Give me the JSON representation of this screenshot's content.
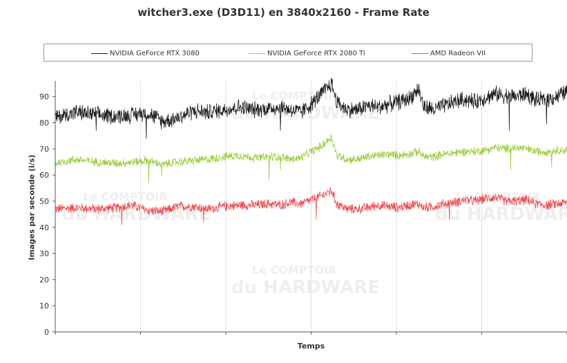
{
  "chart_data": {
    "type": "line",
    "title": "witcher3.exe (D3D11) en 3840x2160 - Frame Rate",
    "xlabel": "Temps",
    "ylabel": "Images par seconde (i/s)",
    "ylim": [
      0,
      96
    ],
    "yticks": [
      0,
      10,
      20,
      30,
      40,
      50,
      60,
      70,
      80,
      90
    ],
    "xlim": [
      0,
      1
    ],
    "x_ticks_count": 6,
    "grid": "vertical only",
    "legend_position": "top",
    "watermark": {
      "line1": "Le",
      "line2": "COMPTOIR",
      "line3": "du",
      "line4": "HARDWARE"
    },
    "series": [
      {
        "name": "NVIDIA GeForce RTX 3080",
        "color": "#1a1a1a",
        "noise": 3.0,
        "x": [
          0.0,
          0.04,
          0.08,
          0.12,
          0.15,
          0.18,
          0.21,
          0.24,
          0.27,
          0.3,
          0.33,
          0.36,
          0.39,
          0.42,
          0.44,
          0.46,
          0.48,
          0.5,
          0.52,
          0.54,
          0.55,
          0.57,
          0.59,
          0.61,
          0.63,
          0.65,
          0.67,
          0.69,
          0.71,
          0.72,
          0.74,
          0.76,
          0.78,
          0.8,
          0.82,
          0.84,
          0.86,
          0.88,
          0.9,
          0.92,
          0.94,
          0.96,
          0.98,
          1.0
        ],
        "values": [
          82,
          84,
          83,
          82.5,
          83,
          84,
          80.5,
          82,
          84.5,
          84,
          85,
          86,
          85,
          85.5,
          86,
          85,
          84,
          87,
          91,
          95,
          88,
          85,
          85,
          86.5,
          86,
          87,
          88,
          89,
          93,
          86,
          85,
          86.5,
          88,
          89,
          88,
          89.5,
          91,
          90.5,
          90,
          91,
          88.5,
          89,
          90,
          92
        ]
      },
      {
        "name": "NVIDIA GeForce RTX 2080 Ti",
        "color": "#9acd3c",
        "noise": 1.6,
        "x": [
          0.0,
          0.04,
          0.08,
          0.12,
          0.15,
          0.18,
          0.21,
          0.24,
          0.27,
          0.3,
          0.33,
          0.36,
          0.39,
          0.42,
          0.44,
          0.46,
          0.48,
          0.5,
          0.52,
          0.54,
          0.55,
          0.57,
          0.59,
          0.61,
          0.63,
          0.65,
          0.67,
          0.69,
          0.71,
          0.72,
          0.74,
          0.76,
          0.78,
          0.8,
          0.82,
          0.84,
          0.86,
          0.88,
          0.9,
          0.92,
          0.94,
          0.96,
          0.98,
          1.0
        ],
        "values": [
          64.5,
          66,
          65,
          64.5,
          65,
          65.5,
          64,
          65,
          65.5,
          66,
          67,
          67.5,
          66.5,
          67,
          67,
          66,
          66.5,
          69,
          71,
          74.5,
          67.5,
          66,
          66,
          67,
          67.5,
          68,
          67.5,
          68,
          69,
          67,
          67,
          68,
          68.5,
          69,
          69,
          69.5,
          70.5,
          70,
          70.5,
          70,
          69,
          69,
          69.5,
          69.5
        ]
      },
      {
        "name": "AMD Radeon VII",
        "color": "#f0474d",
        "noise": 1.8,
        "x": [
          0.0,
          0.04,
          0.08,
          0.12,
          0.15,
          0.18,
          0.21,
          0.24,
          0.27,
          0.3,
          0.33,
          0.36,
          0.39,
          0.42,
          0.44,
          0.46,
          0.48,
          0.5,
          0.52,
          0.54,
          0.55,
          0.57,
          0.59,
          0.61,
          0.63,
          0.65,
          0.67,
          0.69,
          0.71,
          0.72,
          0.74,
          0.76,
          0.78,
          0.8,
          0.82,
          0.84,
          0.86,
          0.88,
          0.9,
          0.92,
          0.94,
          0.96,
          0.98,
          1.0
        ],
        "values": [
          47,
          47.5,
          47,
          47.5,
          48.5,
          46.5,
          46,
          48,
          48,
          47,
          48,
          48.5,
          48.5,
          49,
          48.5,
          49.5,
          49,
          50.5,
          52,
          54,
          49,
          47,
          47,
          47.5,
          48.5,
          48,
          47.5,
          48.5,
          49,
          47.5,
          48,
          49,
          49.5,
          50.5,
          50,
          51,
          51.5,
          50,
          50,
          50.5,
          49,
          48.5,
          49,
          49.5
        ]
      }
    ],
    "spikes": [
      {
        "series": 0,
        "x": 0.08,
        "value": 77
      },
      {
        "series": 0,
        "x": 0.178,
        "value": 74
      },
      {
        "series": 0,
        "x": 0.44,
        "value": 77
      },
      {
        "series": 0,
        "x": 0.887,
        "value": 77
      },
      {
        "series": 0,
        "x": 0.96,
        "value": 79.5
      },
      {
        "series": 1,
        "x": 0.183,
        "value": 57
      },
      {
        "series": 1,
        "x": 0.208,
        "value": 59.5
      },
      {
        "series": 1,
        "x": 0.418,
        "value": 58
      },
      {
        "series": 1,
        "x": 0.44,
        "value": 62
      },
      {
        "series": 1,
        "x": 0.89,
        "value": 62
      },
      {
        "series": 1,
        "x": 0.97,
        "value": 63
      },
      {
        "series": 2,
        "x": 0.13,
        "value": 41
      },
      {
        "series": 2,
        "x": 0.29,
        "value": 42
      },
      {
        "series": 2,
        "x": 0.51,
        "value": 43
      },
      {
        "series": 2,
        "x": 0.77,
        "value": 43
      }
    ]
  }
}
